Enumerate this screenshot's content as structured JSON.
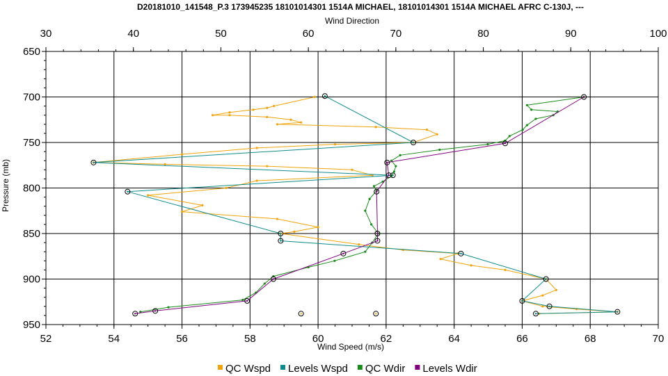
{
  "chart_data": {
    "type": "line",
    "title": "D20181010_141548_P.3 173945235 18101014301 1514A MICHAEL, 18101014301 1514A MICHAEL AFRC C-130J, ---",
    "x_bottom": {
      "label": "Wind Speed (m/s)",
      "range": [
        52,
        70
      ],
      "ticks": [
        "52",
        "54",
        "56",
        "58",
        "60",
        "62",
        "64",
        "66",
        "68",
        "70"
      ]
    },
    "x_top": {
      "label": "Wind Direction",
      "range": [
        30,
        100
      ],
      "ticks": [
        "30",
        "40",
        "50",
        "60",
        "70",
        "80",
        "90",
        "100"
      ]
    },
    "y": {
      "label": "Pressure (mb)",
      "range": [
        650,
        950
      ],
      "inverted": true,
      "ticks": [
        "650",
        "700",
        "750",
        "800",
        "850",
        "900",
        "950"
      ]
    },
    "grid": true,
    "legend_position": "bottom",
    "colors": {
      "qc_wspd": "#f0a30a",
      "levels_wspd": "#0f8a8a",
      "qc_wdir": "#1a8a1a",
      "levels_wdir": "#800080"
    },
    "series": [
      {
        "name": "QC Wspd",
        "axis": "bottom",
        "marker": "dot",
        "points": [
          [
            59.9,
            700
          ],
          [
            58.7,
            710
          ],
          [
            58.5,
            712
          ],
          [
            58.1,
            714
          ],
          [
            57.4,
            717
          ],
          [
            56.9,
            720
          ],
          [
            57.4,
            720
          ],
          [
            58.5,
            722
          ],
          [
            59.2,
            725
          ],
          [
            59.5,
            728
          ],
          [
            58.8,
            730
          ],
          [
            61.7,
            733
          ],
          [
            63.2,
            736
          ],
          [
            63.5,
            741
          ],
          [
            62.8,
            750
          ],
          [
            60.5,
            752
          ],
          [
            58.2,
            756
          ],
          [
            56.0,
            763
          ],
          [
            53.4,
            772
          ],
          [
            55.5,
            774
          ],
          [
            58.5,
            776
          ],
          [
            61.0,
            780
          ],
          [
            61.6,
            786
          ],
          [
            58.2,
            792
          ],
          [
            57.3,
            800
          ],
          [
            55.0,
            808
          ],
          [
            56.6,
            819
          ],
          [
            56.0,
            826
          ],
          [
            58.8,
            834
          ],
          [
            60.0,
            843
          ],
          [
            59.3,
            848
          ],
          [
            58.9,
            850
          ],
          [
            61.2,
            862
          ],
          [
            62.5,
            868
          ],
          [
            64.1,
            872
          ],
          [
            63.6,
            878
          ],
          [
            64.5,
            885
          ],
          [
            65.5,
            890
          ],
          [
            66.7,
            900
          ],
          [
            67.0,
            912
          ],
          [
            66.6,
            918
          ],
          [
            66.0,
            924
          ],
          [
            66.6,
            930
          ],
          [
            67.6,
            933
          ],
          [
            68.8,
            936
          ],
          [
            66.5,
            938
          ]
        ]
      },
      {
        "name": "Levels Wspd",
        "axis": "bottom",
        "marker": "circle",
        "points": [
          [
            60.2,
            699
          ],
          [
            62.8,
            750
          ],
          [
            53.4,
            772
          ],
          [
            62.2,
            786
          ],
          [
            54.4,
            804
          ],
          [
            58.9,
            850
          ],
          [
            58.9,
            858
          ],
          [
            64.2,
            872
          ],
          [
            66.7,
            900
          ],
          [
            66.0,
            924
          ],
          [
            66.8,
            930
          ],
          [
            68.8,
            936
          ],
          [
            66.4,
            938
          ]
        ]
      },
      {
        "name": "QC Wdir",
        "axis": "top",
        "marker": "dot",
        "points": [
          [
            91.5,
            700
          ],
          [
            85.0,
            709
          ],
          [
            85.5,
            714
          ],
          [
            88.5,
            716
          ],
          [
            88.0,
            720
          ],
          [
            86.0,
            724
          ],
          [
            85.0,
            731
          ],
          [
            84.5,
            736
          ],
          [
            83.0,
            743
          ],
          [
            82.5,
            748
          ],
          [
            80.5,
            752
          ],
          [
            75.0,
            758
          ],
          [
            70.5,
            764
          ],
          [
            69.5,
            770
          ],
          [
            70.0,
            776
          ],
          [
            69.8,
            782
          ],
          [
            69.5,
            787
          ],
          [
            68.5,
            793
          ],
          [
            67.5,
            798
          ],
          [
            67.8,
            803
          ],
          [
            67.0,
            812
          ],
          [
            66.5,
            825
          ],
          [
            67.2,
            840
          ],
          [
            68.0,
            850
          ],
          [
            67.3,
            860
          ],
          [
            66.5,
            870
          ],
          [
            63.0,
            880
          ],
          [
            60.0,
            887
          ],
          [
            56.0,
            897
          ],
          [
            55.0,
            905
          ],
          [
            54.0,
            915
          ],
          [
            52.5,
            923
          ],
          [
            44.0,
            931
          ],
          [
            40.8,
            936
          ]
        ]
      },
      {
        "name": "Levels Wdir",
        "axis": "top",
        "marker": "circle",
        "points": [
          [
            91.5,
            700
          ],
          [
            82.5,
            751
          ],
          [
            69.0,
            772
          ],
          [
            69.2,
            786
          ],
          [
            67.8,
            804
          ],
          [
            67.9,
            850
          ],
          [
            67.9,
            858
          ],
          [
            64.0,
            872
          ],
          [
            56.0,
            900
          ],
          [
            53.0,
            924
          ],
          [
            42.5,
            935
          ],
          [
            40.2,
            938
          ]
        ]
      },
      {
        "name": "QC Wspd",
        "axis": "bottom",
        "marker": "circle",
        "hidden_from_legend": true,
        "points": [
          [
            59.5,
            938
          ],
          [
            61.7,
            938
          ]
        ]
      }
    ]
  }
}
